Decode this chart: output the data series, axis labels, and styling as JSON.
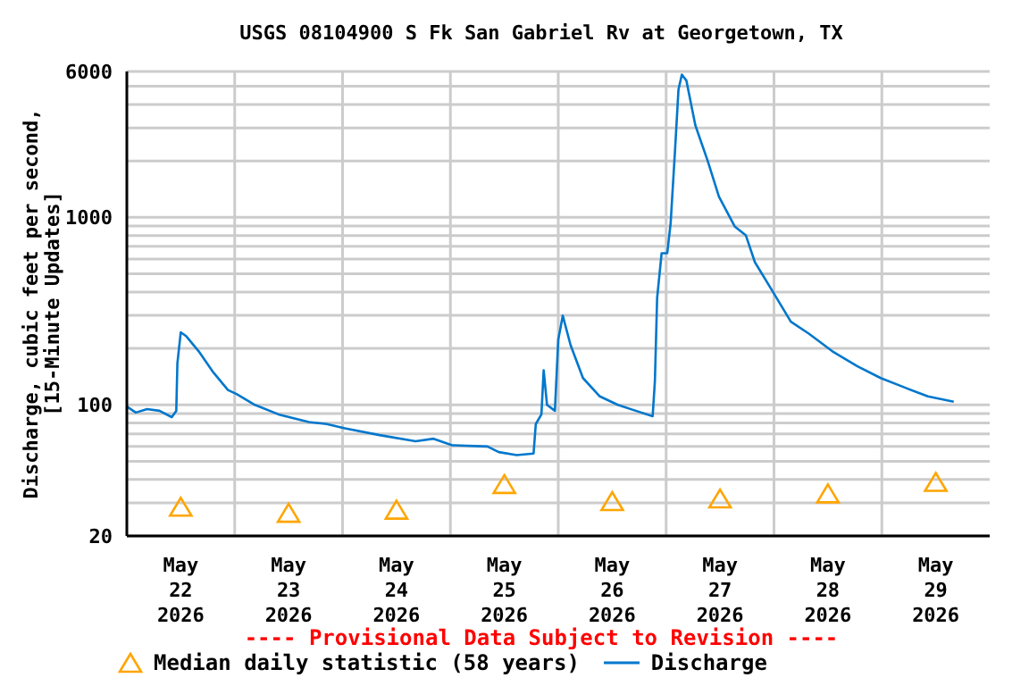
{
  "chart_data": {
    "type": "line",
    "title": "USGS 08104900 S Fk San Gabriel Rv at Georgetown, TX",
    "ylabel": "Discharge, cubic feet per second,\n[15-Minute Updates]",
    "annotations": [
      "---- Provisional Data Subject to Revision ----"
    ],
    "log": true,
    "grid": true,
    "legend": "bottom",
    "ylim": [
      20,
      6000
    ],
    "yticks": [
      20,
      {
        "value": 30,
        "label": null
      },
      {
        "value": 40,
        "label": null
      },
      {
        "value": 50,
        "label": null
      },
      {
        "value": 60,
        "label": null
      },
      {
        "value": 70,
        "label": null
      },
      {
        "value": 80,
        "label": null
      },
      {
        "value": 90,
        "label": null
      },
      100,
      {
        "value": 200,
        "label": null
      },
      {
        "value": 300,
        "label": null
      },
      {
        "value": 400,
        "label": null
      },
      {
        "value": 500,
        "label": null
      },
      {
        "value": 600,
        "label": null
      },
      {
        "value": 700,
        "label": null
      },
      {
        "value": 800,
        "label": null
      },
      {
        "value": 900,
        "label": null
      },
      1000,
      {
        "value": 2000,
        "label": null
      },
      {
        "value": 3000,
        "label": null
      },
      {
        "value": 4000,
        "label": null
      },
      {
        "value": 5000,
        "label": null
      },
      6000
    ],
    "xlim": [
      "2026-05-22T00:00",
      "2026-05-30T00:00"
    ],
    "xticks": [
      {
        "value": "2026-05-23T00:00",
        "label": null
      },
      {
        "value": "2026-05-24T00:00",
        "label": null
      },
      {
        "value": "2026-05-25T00:00",
        "label": null
      },
      {
        "value": "2026-05-26T00:00",
        "label": null
      },
      {
        "value": "2026-05-27T00:00",
        "label": null
      },
      {
        "value": "2026-05-28T00:00",
        "label": null
      },
      {
        "value": "2026-05-29T00:00",
        "label": null
      },
      {
        "value": "2026-05-22T12:00",
        "label": "May\n22\n2026"
      },
      {
        "value": "2026-05-23T12:00",
        "label": "May\n23\n2026"
      },
      {
        "value": "2026-05-24T12:00",
        "label": "May\n24\n2026"
      },
      {
        "value": "2026-05-25T12:00",
        "label": "May\n25\n2026"
      },
      {
        "value": "2026-05-26T12:00",
        "label": "May\n26\n2026"
      },
      {
        "value": "2026-05-27T12:00",
        "label": "May\n27\n2026"
      },
      {
        "value": "2026-05-28T12:00",
        "label": "May\n28\n2026"
      },
      {
        "value": "2026-05-29T12:00",
        "label": "May\n29\n2026"
      }
    ],
    "series": [
      {
        "name": "Median daily statistic (58 years)",
        "type": "scatter",
        "marker": "triangle",
        "color": "#ffa500",
        "x": [
          "2026-05-22T12:00",
          "2026-05-23T12:00",
          "2026-05-24T12:00",
          "2026-05-25T12:00",
          "2026-05-26T12:00",
          "2026-05-27T12:00",
          "2026-05-28T12:00",
          "2026-05-29T12:00"
        ],
        "values": [
          28,
          26,
          27,
          37,
          30,
          31,
          33,
          38
        ]
      },
      {
        "name": "Discharge",
        "marker": "none",
        "color": "#0077cc",
        "x": [
          "2026-05-22T00:00",
          "2026-05-22T02:00",
          "2026-05-22T04:30",
          "2026-05-22T07:15",
          "2026-05-22T10:00",
          "2026-05-22T11:00",
          "2026-05-22T11:15",
          "2026-05-22T12:00",
          "2026-05-22T13:15",
          "2026-05-22T16:00",
          "2026-05-22T19:15",
          "2026-05-22T22:30",
          "2026-05-23T00:30",
          "2026-05-23T04:30",
          "2026-05-23T09:45",
          "2026-05-23T16:30",
          "2026-05-23T20:30",
          "2026-05-24T00:30",
          "2026-05-24T08:15",
          "2026-05-24T16:15",
          "2026-05-24T20:15",
          "2026-05-25T00:15",
          "2026-05-25T08:15",
          "2026-05-25T10:45",
          "2026-05-25T14:45",
          "2026-05-25T18:30",
          "2026-05-25T19:00",
          "2026-05-25T20:15",
          "2026-05-25T20:45",
          "2026-05-25T21:30",
          "2026-05-25T23:15",
          "2026-05-26T00:00",
          "2026-05-26T01:00",
          "2026-05-26T02:45",
          "2026-05-26T05:30",
          "2026-05-26T09:15",
          "2026-05-26T13:15",
          "2026-05-26T17:15",
          "2026-05-26T21:00",
          "2026-05-26T21:30",
          "2026-05-26T22:00",
          "2026-05-26T23:00",
          "2026-05-27T00:15",
          "2026-05-27T01:00",
          "2026-05-27T02:00",
          "2026-05-27T02:45",
          "2026-05-27T03:30",
          "2026-05-27T04:30",
          "2026-05-27T06:30",
          "2026-05-27T09:15",
          "2026-05-27T11:45",
          "2026-05-27T15:15",
          "2026-05-27T17:45",
          "2026-05-27T19:45",
          "2026-05-27T23:45",
          "2026-05-28T03:45",
          "2026-05-28T07:45",
          "2026-05-28T13:00",
          "2026-05-28T18:30",
          "2026-05-28T23:45",
          "2026-05-29T05:00",
          "2026-05-29T10:15",
          "2026-05-29T16:00"
        ],
        "values": [
          98,
          91,
          95,
          93,
          86,
          93,
          167,
          244,
          232,
          193,
          149,
          120,
          114,
          100,
          89,
          81,
          79,
          75,
          69,
          64,
          66,
          61,
          60,
          56,
          54,
          55,
          79,
          89,
          153,
          100,
          93,
          223,
          299,
          208,
          139,
          111,
          100,
          93,
          87,
          134,
          372,
          644,
          644,
          929,
          2318,
          4809,
          5770,
          5370,
          3099,
          2000,
          1291,
          895,
          801,
          577,
          401,
          278,
          240,
          193,
          161,
          139,
          124,
          111,
          104
        ]
      }
    ]
  }
}
